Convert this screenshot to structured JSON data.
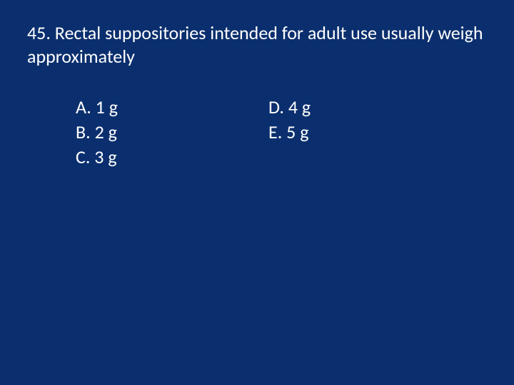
{
  "slide": {
    "background_color": "#0b2f6e",
    "text_color": "#ffffff",
    "font_family": "Calibri, Arial, sans-serif",
    "question_fontsize": 26,
    "option_fontsize": 26
  },
  "question": {
    "number": "45.",
    "stem": "45. Rectal suppositories intended for adult use usually weigh approximately"
  },
  "options": {
    "left": [
      {
        "label": "A. 1 g"
      },
      {
        "label": "B. 2 g"
      },
      {
        "label": "C. 3 g"
      }
    ],
    "right": [
      {
        "label": "D. 4 g"
      },
      {
        "label": "E. 5 g"
      }
    ]
  }
}
